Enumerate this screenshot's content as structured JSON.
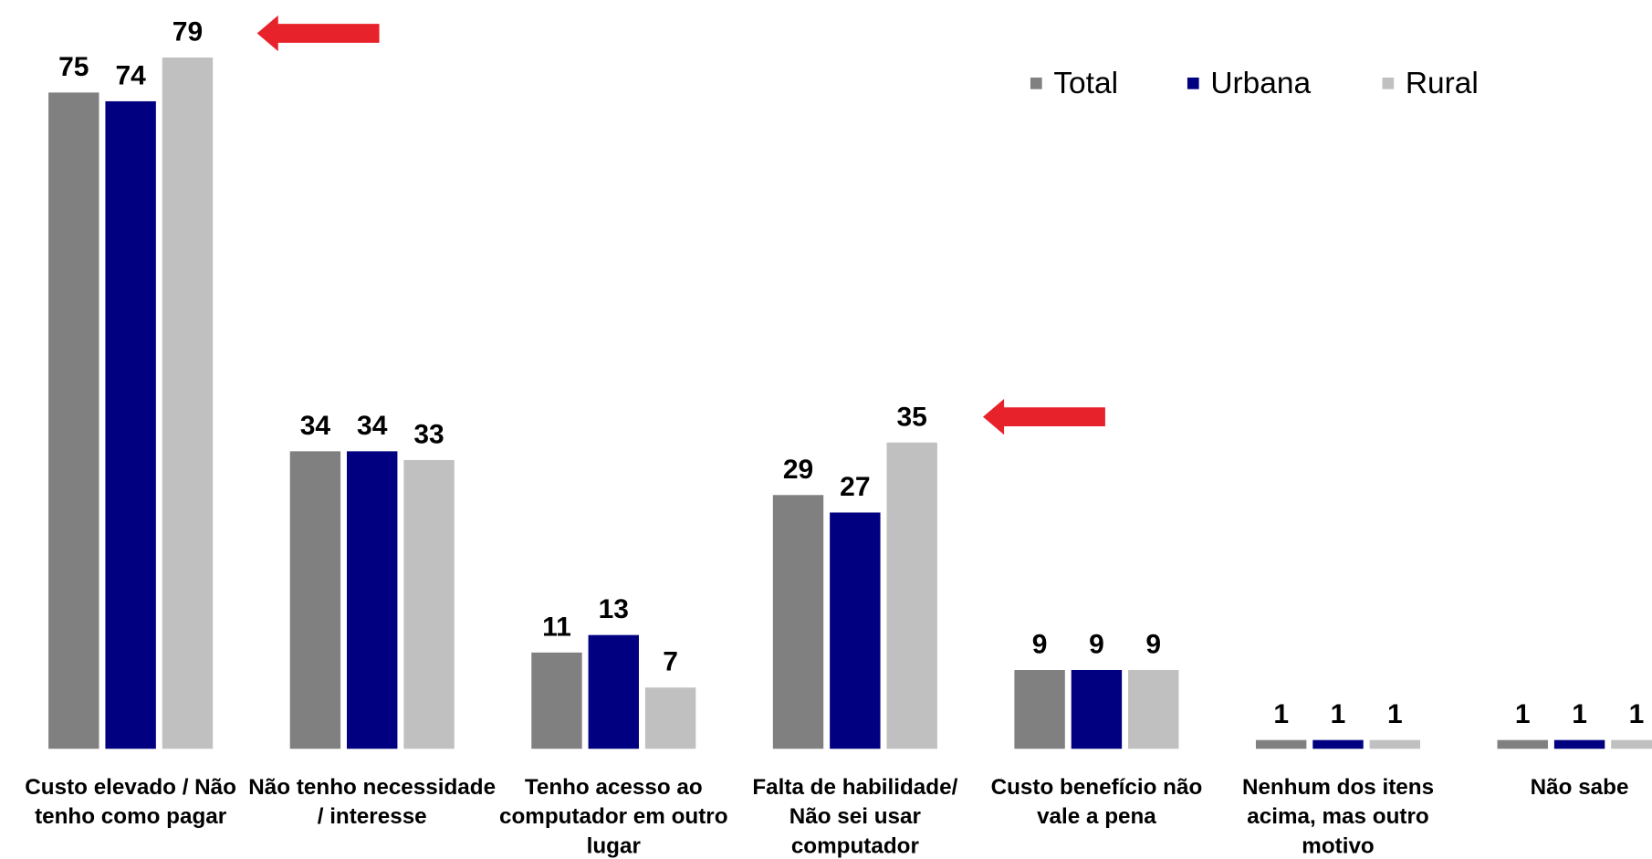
{
  "chart_data": {
    "type": "bar",
    "categories": [
      "Custo elevado / Não tenho como pagar",
      "Não tenho necessidade / interesse",
      "Tenho acesso ao computador em outro lugar",
      "Falta de habilidade/ Não sei usar computador",
      "Custo benefício não vale a pena",
      "Nenhum dos itens acima, mas outro motivo",
      "Não sabe"
    ],
    "series": [
      {
        "name": "Total",
        "color": "#808080",
        "values": [
          75,
          34,
          11,
          29,
          9,
          1,
          1
        ]
      },
      {
        "name": "Urbana",
        "color": "#000080",
        "values": [
          74,
          34,
          13,
          27,
          9,
          1,
          1
        ]
      },
      {
        "name": "Rural",
        "color": "#c0c0c0",
        "values": [
          79,
          33,
          7,
          35,
          9,
          1,
          1
        ]
      }
    ],
    "legend": "top-right"
  }
}
